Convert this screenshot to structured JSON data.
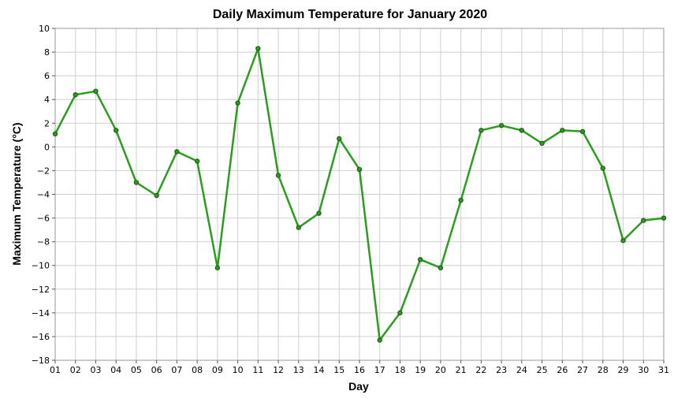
{
  "chart_data": {
    "type": "line",
    "title": "Daily Maximum Temperature for January 2020",
    "xlabel": "Day",
    "ylabel": "Maximum Temperature (°C)",
    "x": [
      "01",
      "02",
      "03",
      "04",
      "05",
      "06",
      "07",
      "08",
      "09",
      "10",
      "11",
      "12",
      "13",
      "14",
      "15",
      "16",
      "17",
      "18",
      "19",
      "20",
      "21",
      "22",
      "23",
      "24",
      "25",
      "26",
      "27",
      "28",
      "29",
      "30",
      "31"
    ],
    "series": [
      {
        "values": [
          1.1,
          4.4,
          4.7,
          1.4,
          -3.0,
          -4.1,
          -0.4,
          -1.2,
          -10.2,
          3.7,
          8.3,
          -2.4,
          -6.8,
          -5.6,
          0.7,
          -1.9,
          -16.3,
          -14.0,
          -9.5,
          -10.2,
          -4.5,
          1.4,
          1.8,
          1.4,
          0.3,
          1.4,
          1.3,
          -1.8,
          -7.9,
          -6.2,
          -6.0
        ]
      }
    ],
    "ylim": [
      -18,
      10
    ],
    "yticks": [
      10,
      8,
      6,
      4,
      2,
      0,
      -2,
      -4,
      -6,
      -8,
      -10,
      -12,
      -14,
      -16,
      -18
    ],
    "grid": true,
    "line_color": "#2a9d1e",
    "marker_color": "#1f5c17"
  }
}
